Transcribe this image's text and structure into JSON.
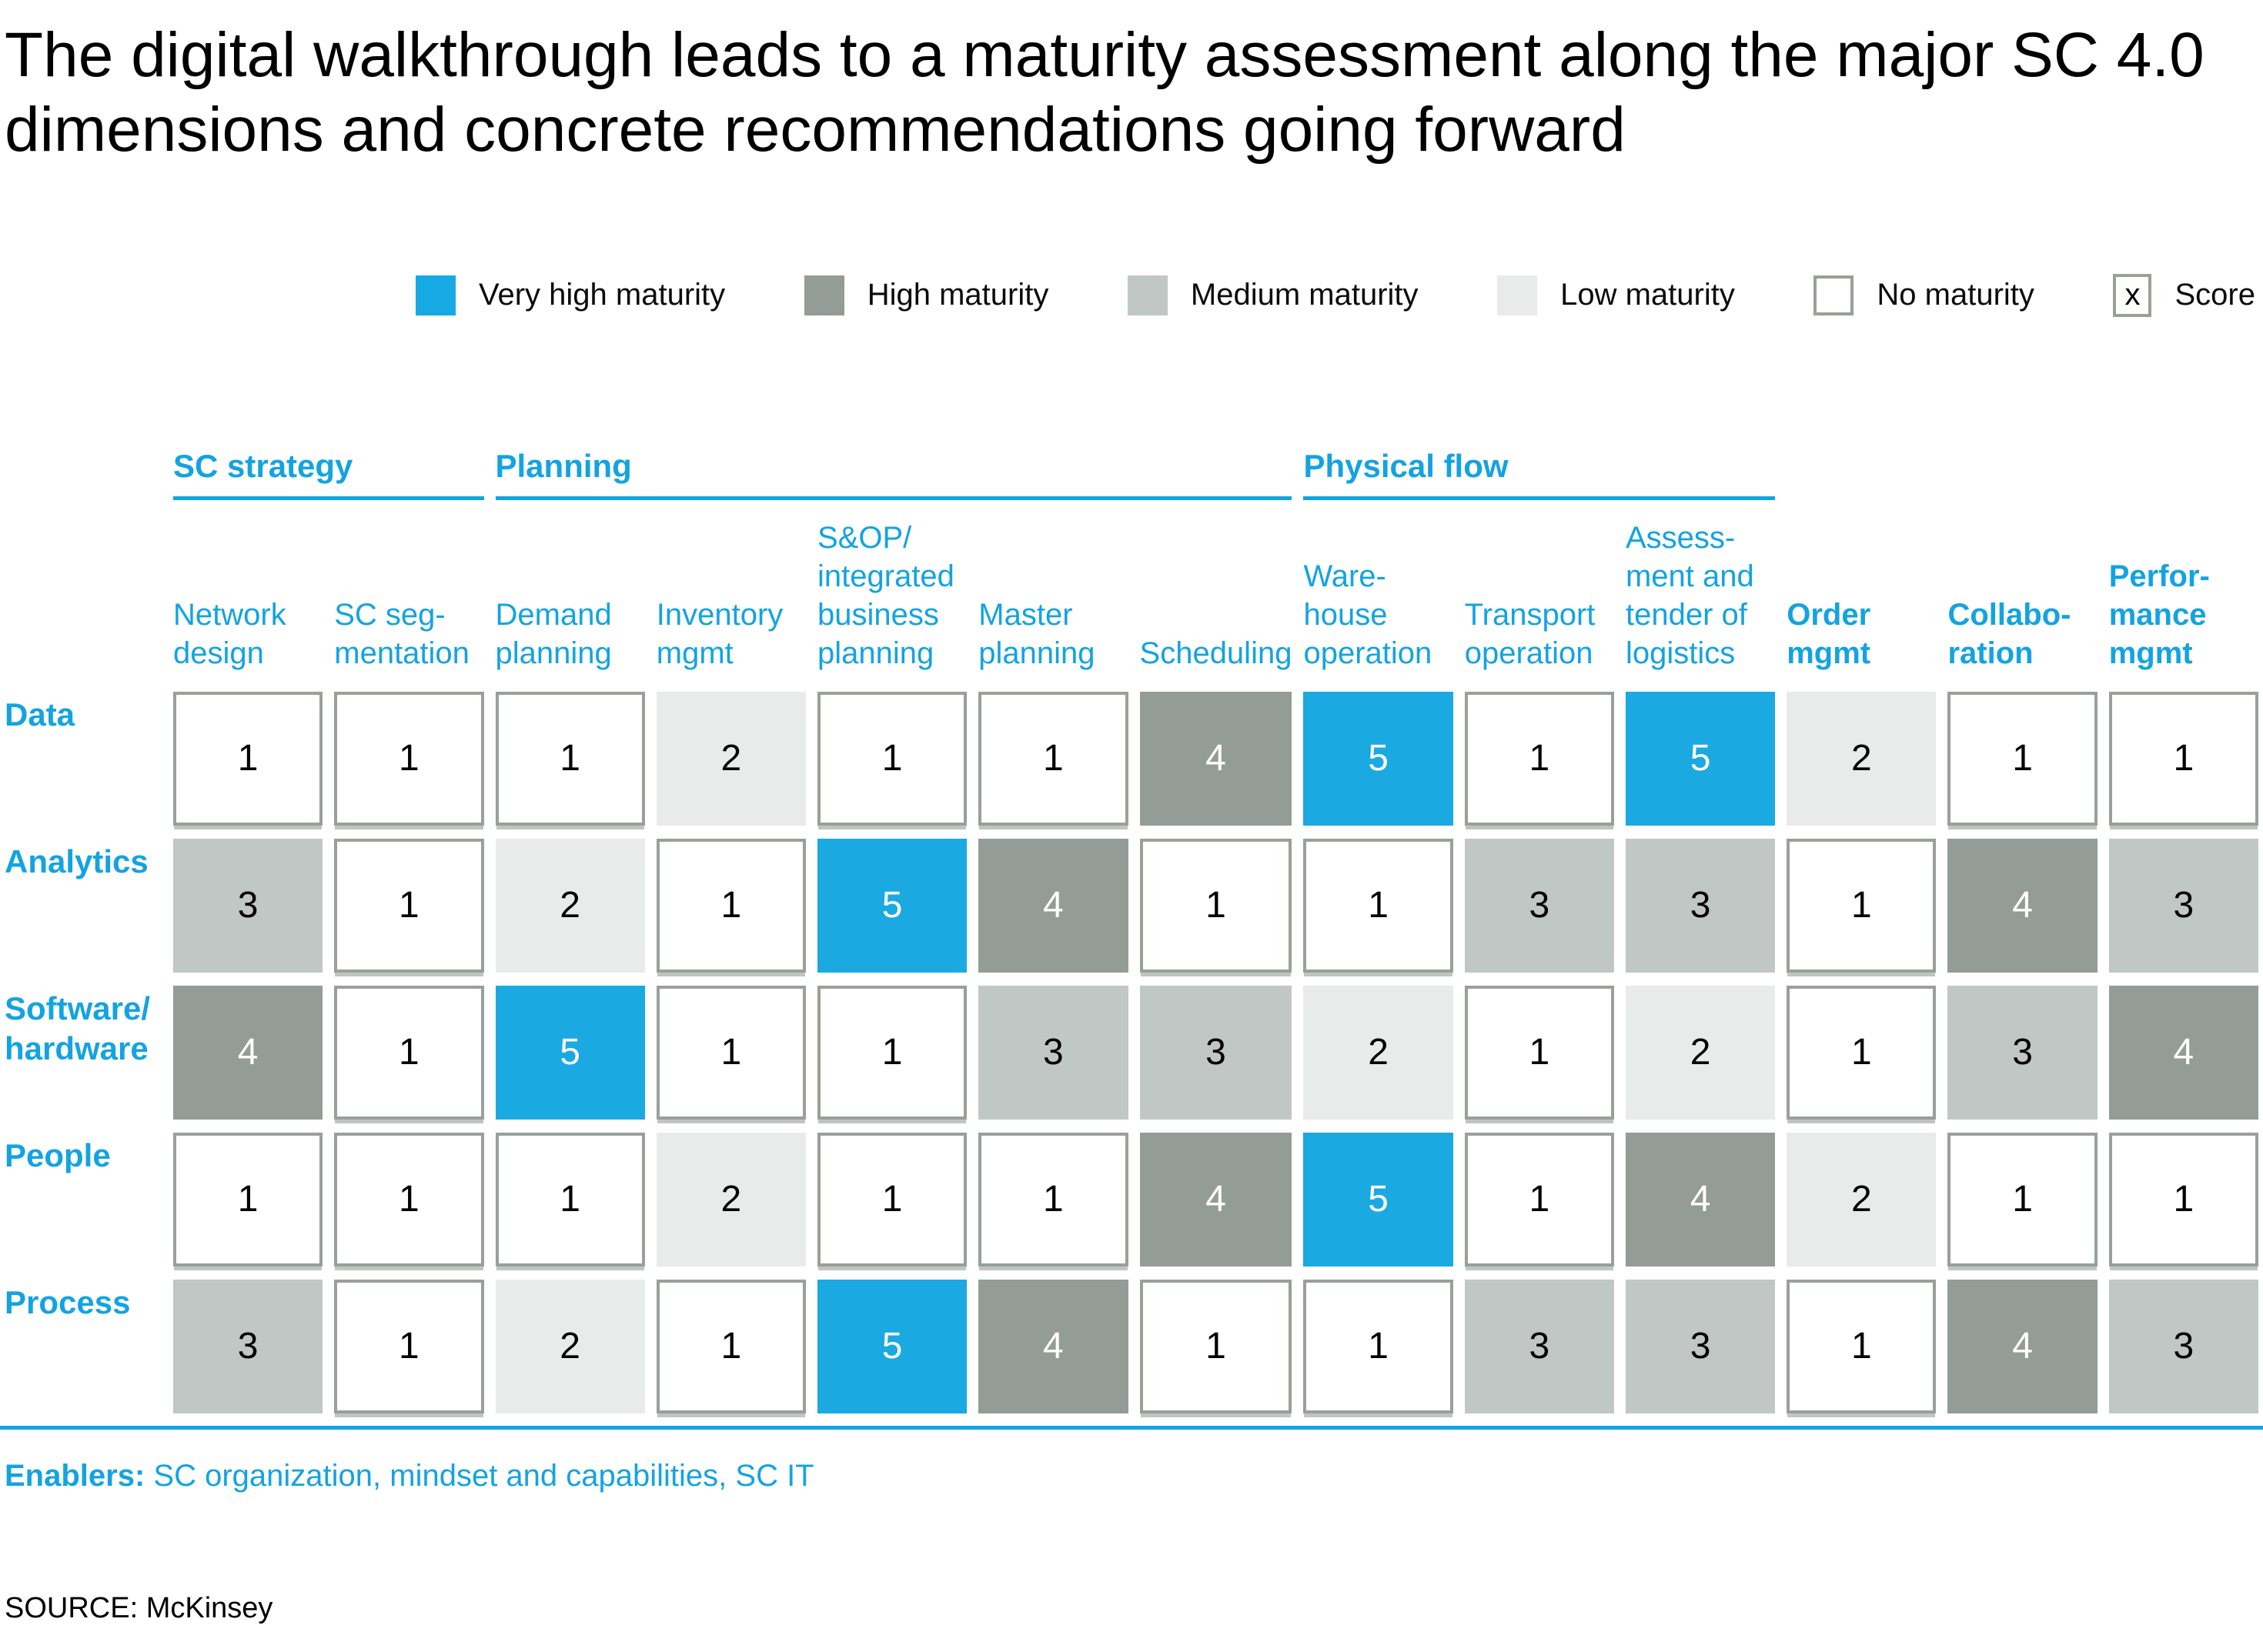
{
  "title": "The digital walkthrough leads to a maturity assessment along the major SC 4.0 dimensions and concrete recommendations going forward",
  "legend": [
    {
      "label": "Very high maturity",
      "color": "#17A9E4"
    },
    {
      "label": "High maturity",
      "color": "#949C97"
    },
    {
      "label": "Medium maturity",
      "color": "#C0C7C4"
    },
    {
      "label": "Low maturity",
      "color": "#E9EBEA"
    },
    {
      "label": "No maturity",
      "color": "#FFFFFF",
      "border": true
    },
    {
      "label": "Score",
      "symbol": "x"
    }
  ],
  "colors": {
    "cyan": "#14A3E1",
    "blue": "#1BA9E2",
    "high": "#949C97",
    "medium": "#C0C7C4",
    "low": "#E9EBEA",
    "border": "#98A09A"
  },
  "chart_data": {
    "type": "heatmap",
    "title": "SC 4.0 maturity assessment",
    "column_groups": [
      {
        "label": "SC strategy",
        "start": 1,
        "span": 2
      },
      {
        "label": "Planning",
        "start": 3,
        "span": 5
      },
      {
        "label": "Physical flow",
        "start": 8,
        "span": 3
      }
    ],
    "columns": [
      {
        "label": "Network\ndesign",
        "bold": false
      },
      {
        "label": "SC seg-\nmentation",
        "bold": false
      },
      {
        "label": "Demand\nplanning",
        "bold": false
      },
      {
        "label": "Inventory\nmgmt",
        "bold": false
      },
      {
        "label": "S&OP/\nintegrated\nbusiness\nplanning",
        "bold": false
      },
      {
        "label": "Master\nplanning",
        "bold": false
      },
      {
        "label": "Scheduling",
        "bold": false
      },
      {
        "label": "Ware-\nhouse\noperation",
        "bold": false
      },
      {
        "label": "Transport\noperation",
        "bold": false
      },
      {
        "label": "Assess-\nment and\ntender of\nlogistics",
        "bold": false
      },
      {
        "label": "Order\nmgmt",
        "bold": true
      },
      {
        "label": "Collabo-\nration",
        "bold": true
      },
      {
        "label": "Perfor-\nmance\nmgmt",
        "bold": true
      }
    ],
    "rows": [
      "Data",
      "Analytics",
      "Software/\nhardware",
      "People",
      "Process"
    ],
    "values": [
      [
        1,
        1,
        1,
        2,
        1,
        1,
        4,
        5,
        1,
        5,
        2,
        1,
        1
      ],
      [
        3,
        1,
        2,
        1,
        5,
        4,
        1,
        1,
        3,
        3,
        1,
        4,
        3
      ],
      [
        4,
        1,
        5,
        1,
        1,
        3,
        3,
        2,
        1,
        2,
        1,
        3,
        4
      ],
      [
        1,
        1,
        1,
        2,
        1,
        1,
        4,
        5,
        1,
        4,
        2,
        1,
        1
      ],
      [
        3,
        1,
        2,
        1,
        5,
        4,
        1,
        1,
        3,
        3,
        1,
        4,
        3
      ]
    ],
    "score_scale": {
      "1": "No maturity",
      "2": "Low maturity",
      "3": "Medium maturity",
      "4": "High maturity",
      "5": "Very high maturity"
    }
  },
  "enablers": {
    "label": "Enablers:",
    "text": " SC organization, mindset and capabilities, SC IT"
  },
  "source": "SOURCE: McKinsey"
}
